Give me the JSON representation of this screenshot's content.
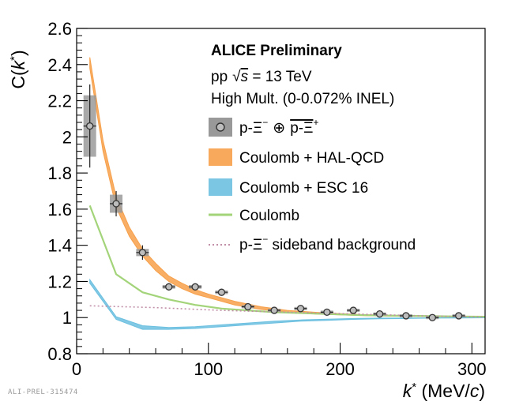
{
  "chart_data": {
    "type": "line",
    "title": "ALICE Preliminary",
    "annotations": [
      "pp √s = 13 TeV",
      "High Mult. (0-0.072% INEL)"
    ],
    "xlabel": "k* (MeV/c)",
    "ylabel": "C(k*)",
    "xlim": [
      0,
      310
    ],
    "ylim": [
      0.8,
      2.6
    ],
    "x_ticks": [
      0,
      100,
      200,
      300
    ],
    "y_ticks": [
      0.8,
      1,
      1.2,
      1.4,
      1.6,
      1.8,
      2,
      2.2,
      2.4,
      2.6
    ],
    "x_ticks_label": [
      "0",
      "100",
      "200",
      "300"
    ],
    "y_ticks_label": [
      "0.8",
      "1",
      "1.2",
      "1.4",
      "1.6",
      "1.8",
      "2",
      "2.2",
      "2.4",
      "2.6"
    ],
    "grid": false,
    "legend_position": "top-right",
    "series": [
      {
        "name": "p-Ξ⁻ ⊕ p̄-Ξ̄⁺",
        "kind": "data_points",
        "color": "#555555",
        "x": [
          10,
          30,
          50,
          70,
          90,
          110,
          130,
          150,
          170,
          190,
          210,
          230,
          250,
          270,
          290
        ],
        "y": [
          2.06,
          1.63,
          1.36,
          1.17,
          1.17,
          1.14,
          1.06,
          1.04,
          1.05,
          1.03,
          1.04,
          1.02,
          1.01,
          1.0,
          1.01
        ],
        "stat_err": [
          0.23,
          0.07,
          0.04,
          0.02,
          0.015,
          0.015,
          0.01,
          0.01,
          0.01,
          0.01,
          0.01,
          0.01,
          0.01,
          0.01,
          0.01
        ],
        "syst_err": [
          0.17,
          0.05,
          0.02,
          0.01,
          0.01,
          0.01,
          0.008,
          0.008,
          0.008,
          0.008,
          0.008,
          0.008,
          0.008,
          0.008,
          0.008
        ]
      },
      {
        "name": "Coulomb + HAL-QCD",
        "kind": "band",
        "color": "#f7a04a",
        "x": [
          10,
          20,
          30,
          40,
          50,
          60,
          70,
          80,
          90,
          100,
          120,
          140,
          160,
          180,
          200,
          220,
          240,
          260,
          280,
          300,
          310
        ],
        "y_low": [
          2.38,
          1.92,
          1.61,
          1.45,
          1.34,
          1.26,
          1.2,
          1.16,
          1.13,
          1.11,
          1.07,
          1.045,
          1.03,
          1.02,
          1.015,
          1.01,
          1.008,
          1.006,
          1.004,
          1.003,
          1.003
        ],
        "y_high": [
          2.44,
          1.98,
          1.67,
          1.5,
          1.38,
          1.3,
          1.23,
          1.19,
          1.155,
          1.13,
          1.09,
          1.06,
          1.04,
          1.03,
          1.022,
          1.016,
          1.012,
          1.009,
          1.007,
          1.005,
          1.004
        ]
      },
      {
        "name": "Coulomb + ESC 16",
        "kind": "band",
        "color": "#6cc0e0",
        "x": [
          10,
          30,
          50,
          70,
          90,
          110,
          130,
          150,
          170,
          190,
          210,
          230,
          250,
          270,
          290,
          310
        ],
        "y_low": [
          1.19,
          0.99,
          0.935,
          0.935,
          0.94,
          0.95,
          0.96,
          0.97,
          0.98,
          0.985,
          0.99,
          0.993,
          0.995,
          0.997,
          0.998,
          0.999
        ],
        "y_high": [
          1.21,
          1.005,
          0.955,
          0.945,
          0.95,
          0.96,
          0.97,
          0.98,
          0.987,
          0.991,
          0.995,
          0.997,
          0.998,
          0.999,
          1.0,
          1.0
        ]
      },
      {
        "name": "Coulomb",
        "kind": "line",
        "color": "#a3d47a",
        "x": [
          10,
          30,
          50,
          70,
          90,
          110,
          130,
          150,
          170,
          190,
          210,
          230,
          250,
          270,
          290,
          310
        ],
        "y": [
          1.62,
          1.24,
          1.14,
          1.1,
          1.07,
          1.05,
          1.04,
          1.03,
          1.025,
          1.02,
          1.015,
          1.012,
          1.01,
          1.008,
          1.006,
          1.005
        ]
      },
      {
        "name": "p-Ξ⁻ sideband background",
        "kind": "dotted_line",
        "color": "#c18fa8",
        "x": [
          10,
          60,
          110,
          160,
          210,
          260,
          310
        ],
        "y": [
          1.065,
          1.055,
          1.04,
          1.03,
          1.02,
          1.01,
          1.003
        ]
      }
    ]
  },
  "legend": {
    "title": "ALICE Preliminary",
    "line1_pp": "pp",
    "line1_sqrt": "√",
    "line1_s": "s",
    "line1_rest": " = 13 TeV",
    "line2": "High Mult. (0-0.072% INEL)",
    "entries": {
      "data_a": "p-Ξ",
      "data_b": "⊕",
      "data_c": "p-Ξ",
      "halqcd": "Coulomb + HAL-QCD",
      "esc16": "Coulomb + ESC 16",
      "coulomb": "Coulomb",
      "sideband_a": "p-Ξ",
      "sideband_b": " sideband background"
    }
  },
  "axis_text": {
    "y_C": "C(",
    "y_k": "k",
    "y_star": "*",
    "y_close": ")",
    "x_k": "k",
    "x_star": "*",
    "x_unit": " (MeV/",
    "x_c": "c",
    "x_close": ")"
  },
  "watermark": "ALI-PREL-315474"
}
